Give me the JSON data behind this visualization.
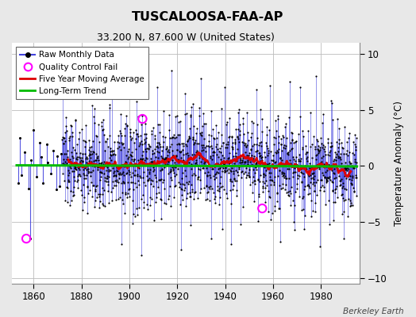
{
  "title": "TUSCALOOSA-FAA-AP",
  "subtitle": "33.200 N, 87.600 W (United States)",
  "ylabel": "Temperature Anomaly (°C)",
  "attribution": "Berkeley Earth",
  "xlim": [
    1851,
    1996
  ],
  "ylim": [
    -10.5,
    11
  ],
  "yticks": [
    -10,
    -5,
    0,
    5,
    10
  ],
  "xticks": [
    1860,
    1880,
    1900,
    1920,
    1940,
    1960,
    1980
  ],
  "background_color": "#e8e8e8",
  "plot_bg_color": "#ffffff",
  "grid_color": "#bbbbbb",
  "raw_line_color": "#4444dd",
  "raw_dot_color": "#000000",
  "moving_avg_color": "#dd0000",
  "trend_color": "#00bb00",
  "qc_fail_color": "#ff00ff",
  "seed": 137,
  "start_year": 1853,
  "end_year": 1995,
  "sparse_start_year": 1853,
  "sparse_end_year": 1871,
  "n_months_sparse": 24,
  "full_start_year": 1872,
  "full_end_year": 1995,
  "n_months_full": 1488
}
